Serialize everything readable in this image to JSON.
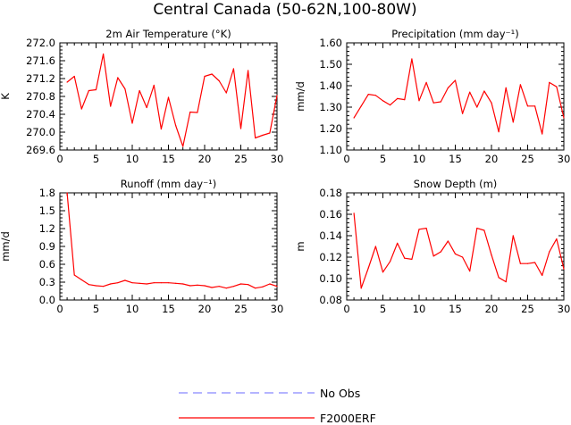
{
  "figure_title": "Central Canada (50-62N,100-80W)",
  "colors": {
    "model": "#ff0000",
    "obs": "#8888ff",
    "axes": "#000000"
  },
  "legend": {
    "obs_label": "No Obs",
    "model_label": "F2000ERF"
  },
  "chart_data": [
    {
      "type": "line",
      "title": "2m Air Temperature (°K)",
      "xlabel": "",
      "ylabel": "K",
      "xlim": [
        0,
        30
      ],
      "ylim": [
        269.6,
        272.0
      ],
      "xticks": [
        0,
        5,
        10,
        15,
        20,
        25,
        30
      ],
      "xtick_labels": [
        "0",
        "5",
        "10",
        "15",
        "20",
        "25",
        "30"
      ],
      "yticks": [
        269.6,
        270.0,
        270.4,
        270.8,
        271.2,
        271.6,
        272.0
      ],
      "ytick_labels": [
        "269.6",
        "270.0",
        "270.4",
        "270.8",
        "271.2",
        "271.6",
        "272.0"
      ],
      "series": [
        {
          "name": "F2000ERF",
          "x": [
            1,
            2,
            3,
            4,
            5,
            6,
            7,
            8,
            9,
            10,
            11,
            12,
            13,
            14,
            15,
            16,
            17,
            18,
            19,
            20,
            21,
            22,
            23,
            24,
            25,
            26,
            27,
            28,
            29,
            30
          ],
          "values": [
            271.12,
            271.25,
            270.52,
            270.93,
            270.95,
            271.75,
            270.58,
            271.22,
            270.97,
            270.2,
            270.93,
            270.55,
            271.05,
            270.07,
            270.78,
            270.15,
            269.68,
            270.45,
            270.44,
            271.25,
            271.3,
            271.15,
            270.88,
            271.42,
            270.08,
            271.38,
            269.87,
            269.93,
            269.98,
            270.82
          ]
        }
      ]
    },
    {
      "type": "line",
      "title": "Precipitation (mm day⁻¹)",
      "xlabel": "",
      "ylabel": "mm/d",
      "xlim": [
        0,
        30
      ],
      "ylim": [
        1.1,
        1.6
      ],
      "xticks": [
        0,
        5,
        10,
        15,
        20,
        25,
        30
      ],
      "xtick_labels": [
        "0",
        "5",
        "10",
        "15",
        "20",
        "25",
        "30"
      ],
      "yticks": [
        1.1,
        1.2,
        1.3,
        1.4,
        1.5,
        1.6
      ],
      "ytick_labels": [
        "1.10",
        "1.20",
        "1.30",
        "1.40",
        "1.50",
        "1.60"
      ],
      "series": [
        {
          "name": "F2000ERF",
          "x": [
            1,
            2,
            3,
            4,
            5,
            6,
            7,
            8,
            9,
            10,
            11,
            12,
            13,
            14,
            15,
            16,
            17,
            18,
            19,
            20,
            21,
            22,
            23,
            24,
            25,
            26,
            27,
            28,
            29,
            30
          ],
          "values": [
            1.25,
            1.305,
            1.36,
            1.355,
            1.33,
            1.31,
            1.34,
            1.335,
            1.525,
            1.33,
            1.415,
            1.32,
            1.325,
            1.39,
            1.425,
            1.27,
            1.37,
            1.3,
            1.375,
            1.32,
            1.185,
            1.39,
            1.23,
            1.405,
            1.305,
            1.305,
            1.175,
            1.415,
            1.395,
            1.25
          ]
        }
      ]
    },
    {
      "type": "line",
      "title": "Runoff (mm day⁻¹)",
      "xlabel": "",
      "ylabel": "mm/d",
      "xlim": [
        0,
        30
      ],
      "ylim": [
        0.0,
        1.8
      ],
      "xticks": [
        0,
        5,
        10,
        15,
        20,
        25,
        30
      ],
      "xtick_labels": [
        "0",
        "5",
        "10",
        "15",
        "20",
        "25",
        "30"
      ],
      "yticks": [
        0.0,
        0.3,
        0.6,
        0.9,
        1.2,
        1.5,
        1.8
      ],
      "ytick_labels": [
        "0.0",
        "0.3",
        "0.6",
        "0.9",
        "1.2",
        "1.5",
        "1.8"
      ],
      "series": [
        {
          "name": "F2000ERF",
          "x": [
            1,
            2,
            3,
            4,
            5,
            6,
            7,
            8,
            9,
            10,
            11,
            12,
            13,
            14,
            15,
            16,
            17,
            18,
            19,
            20,
            21,
            22,
            23,
            24,
            25,
            26,
            27,
            28,
            29,
            30
          ],
          "values": [
            1.8,
            0.42,
            0.34,
            0.26,
            0.24,
            0.23,
            0.27,
            0.29,
            0.33,
            0.29,
            0.28,
            0.27,
            0.29,
            0.29,
            0.29,
            0.28,
            0.27,
            0.24,
            0.25,
            0.24,
            0.21,
            0.23,
            0.2,
            0.23,
            0.27,
            0.26,
            0.2,
            0.22,
            0.27,
            0.23
          ]
        }
      ]
    },
    {
      "type": "line",
      "title": "Snow Depth (m)",
      "xlabel": "",
      "ylabel": "m",
      "xlim": [
        0,
        30
      ],
      "ylim": [
        0.08,
        0.18
      ],
      "xticks": [
        0,
        5,
        10,
        15,
        20,
        25,
        30
      ],
      "xtick_labels": [
        "0",
        "5",
        "10",
        "15",
        "20",
        "25",
        "30"
      ],
      "yticks": [
        0.08,
        0.1,
        0.12,
        0.14,
        0.16,
        0.18
      ],
      "ytick_labels": [
        "0.08",
        "0.10",
        "0.12",
        "0.14",
        "0.16",
        "0.18"
      ],
      "series": [
        {
          "name": "F2000ERF",
          "x": [
            1,
            2,
            3,
            4,
            5,
            6,
            7,
            8,
            9,
            10,
            11,
            12,
            13,
            14,
            15,
            16,
            17,
            18,
            19,
            20,
            21,
            22,
            23,
            24,
            25,
            26,
            27,
            28,
            29,
            30
          ],
          "values": [
            0.161,
            0.091,
            0.11,
            0.13,
            0.106,
            0.116,
            0.133,
            0.119,
            0.118,
            0.146,
            0.147,
            0.121,
            0.125,
            0.135,
            0.123,
            0.12,
            0.107,
            0.147,
            0.145,
            0.122,
            0.101,
            0.097,
            0.14,
            0.114,
            0.114,
            0.115,
            0.103,
            0.125,
            0.137,
            0.109
          ]
        }
      ]
    }
  ]
}
